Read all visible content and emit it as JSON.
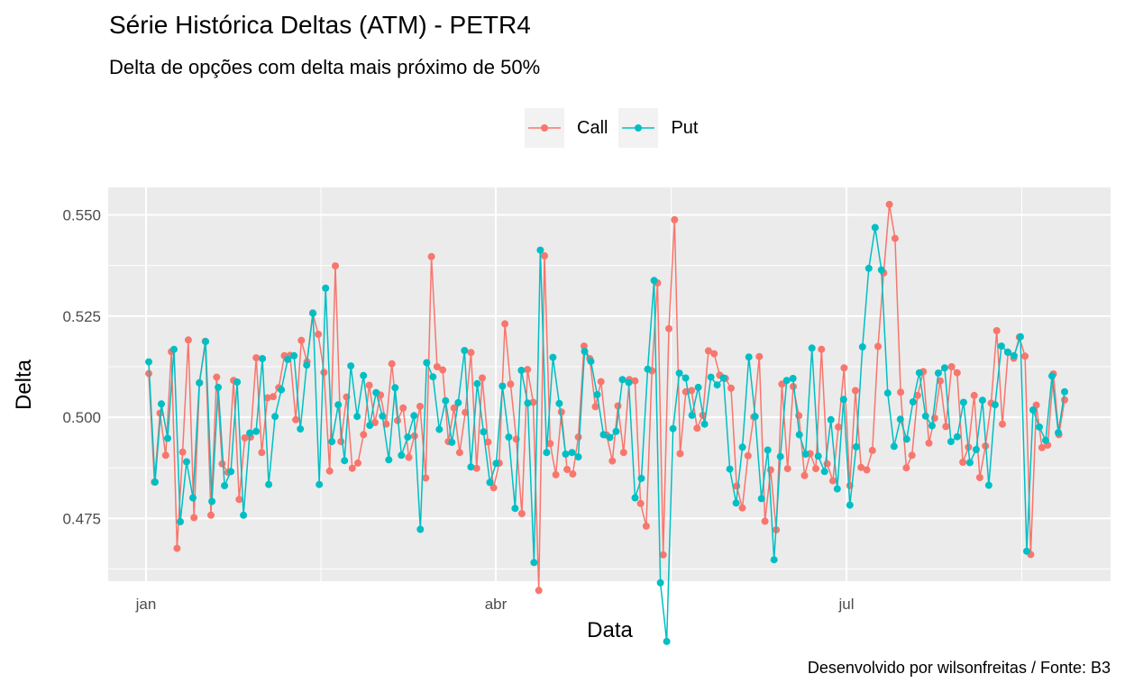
{
  "chart_data": {
    "type": "line",
    "title": "Série Histórica Deltas (ATM) - PETR4",
    "subtitle": "Delta de opções com delta mais próximo de 50%",
    "caption": "Desenvolvido por wilsonfreitas / Fonte: B3",
    "xlabel": "Data",
    "ylabel": "Delta",
    "x_ticks": [
      "jan",
      "abr",
      "jul"
    ],
    "y_ticks": [
      "0.475",
      "0.500",
      "0.525",
      "0.550"
    ],
    "ylim": [
      0.4595,
      0.5568
    ],
    "grid": true,
    "legend_position": "top",
    "series": [
      {
        "name": "Call",
        "color": "#F8766D",
        "values": [
          0.5108,
          0.484,
          0.501,
          0.4906,
          0.5162,
          0.4676,
          0.4914,
          0.5191,
          0.4752,
          0.5085,
          0.5188,
          0.4758,
          0.5099,
          0.4885,
          0.4864,
          0.5091,
          0.4797,
          0.4949,
          0.4951,
          0.5147,
          0.4913,
          0.5048,
          0.5051,
          0.5073,
          0.5152,
          0.5153,
          0.4994,
          0.519,
          0.5137,
          0.5258,
          0.5205,
          0.5111,
          0.4867,
          0.5374,
          0.494,
          0.505,
          0.4874,
          0.4887,
          0.4957,
          0.5079,
          0.4987,
          0.5055,
          0.4983,
          0.5132,
          0.4992,
          0.5023,
          0.4901,
          0.4954,
          0.5027,
          0.485,
          0.5397,
          0.5125,
          0.5117,
          0.494,
          0.5023,
          0.4913,
          0.5012,
          0.516,
          0.4874,
          0.5097,
          0.4939,
          0.4826,
          0.4887,
          0.5231,
          0.5082,
          0.4946,
          0.4762,
          0.5118,
          0.5037,
          0.4572,
          0.5399,
          0.4935,
          0.4858,
          0.5013,
          0.4871,
          0.486,
          0.4951,
          0.5176,
          0.5145,
          0.5026,
          0.5088,
          0.4956,
          0.4892,
          0.5028,
          0.4913,
          0.5093,
          0.509,
          0.4787,
          0.4731,
          0.5115,
          0.5332,
          0.466,
          0.5219,
          0.5488,
          0.491,
          0.5063,
          0.5066,
          0.4973,
          0.5005,
          0.5164,
          0.5157,
          0.5104,
          0.5096,
          0.5072,
          0.483,
          0.4776,
          0.4905,
          0.5001,
          0.515,
          0.4743,
          0.487,
          0.4722,
          0.5082,
          0.4873,
          0.5076,
          0.5004,
          0.4856,
          0.491,
          0.4873,
          0.5168,
          0.4885,
          0.4843,
          0.4976,
          0.5122,
          0.4831,
          0.5066,
          0.4876,
          0.487,
          0.4918,
          0.5175,
          0.5357,
          0.5526,
          0.5442,
          0.5062,
          0.4875,
          0.4906,
          0.5054,
          0.5113,
          0.4936,
          0.4998,
          0.509,
          0.4977,
          0.5125,
          0.511,
          0.4889,
          0.4926,
          0.5054,
          0.4851,
          0.4929,
          0.5035,
          0.5214,
          0.4983,
          0.516,
          0.5146,
          0.5198,
          0.5151,
          0.4661,
          0.503,
          0.4925,
          0.4931,
          0.5107,
          0.4957,
          0.5043
        ]
      },
      {
        "name": "Put",
        "color": "#00BFC4",
        "values": [
          0.5137,
          0.484,
          0.5033,
          0.4948,
          0.5168,
          0.4742,
          0.489,
          0.4801,
          0.5085,
          0.5187,
          0.4792,
          0.5074,
          0.4831,
          0.4866,
          0.5087,
          0.4758,
          0.4961,
          0.4965,
          0.5145,
          0.4834,
          0.5002,
          0.5068,
          0.5143,
          0.5152,
          0.4971,
          0.5129,
          0.5257,
          0.4834,
          0.5319,
          0.494,
          0.5031,
          0.4893,
          0.5127,
          0.5002,
          0.5103,
          0.498,
          0.5061,
          0.5003,
          0.4895,
          0.5073,
          0.4906,
          0.4951,
          0.5004,
          0.4723,
          0.5135,
          0.51,
          0.497,
          0.5041,
          0.4938,
          0.5036,
          0.5165,
          0.4877,
          0.5083,
          0.4964,
          0.4839,
          0.4886,
          0.5077,
          0.4951,
          0.4775,
          0.5116,
          0.5035,
          0.4641,
          0.5413,
          0.4913,
          0.5148,
          0.5034,
          0.4909,
          0.4913,
          0.4902,
          0.5163,
          0.5138,
          0.5056,
          0.4957,
          0.495,
          0.4965,
          0.5093,
          0.5086,
          0.4801,
          0.4849,
          0.5119,
          0.5338,
          0.4591,
          0.4446,
          0.4972,
          0.5109,
          0.5097,
          0.5005,
          0.5074,
          0.4983,
          0.5099,
          0.508,
          0.5097,
          0.4872,
          0.4788,
          0.4926,
          0.5149,
          0.5002,
          0.4799,
          0.4919,
          0.4648,
          0.4903,
          0.5091,
          0.5096,
          0.4957,
          0.4909,
          0.5171,
          0.4904,
          0.4866,
          0.4994,
          0.4823,
          0.5044,
          0.4783,
          0.4927,
          0.5174,
          0.5368,
          0.5469,
          0.5364,
          0.506,
          0.4928,
          0.4995,
          0.4946,
          0.5038,
          0.511,
          0.5003,
          0.4979,
          0.5109,
          0.5122,
          0.494,
          0.4952,
          0.5037,
          0.4888,
          0.492,
          0.5042,
          0.4832,
          0.5031,
          0.5176,
          0.5161,
          0.5152,
          0.5199,
          0.4669,
          0.5018,
          0.4976,
          0.4943,
          0.5102,
          0.4962,
          0.5063
        ]
      }
    ]
  }
}
